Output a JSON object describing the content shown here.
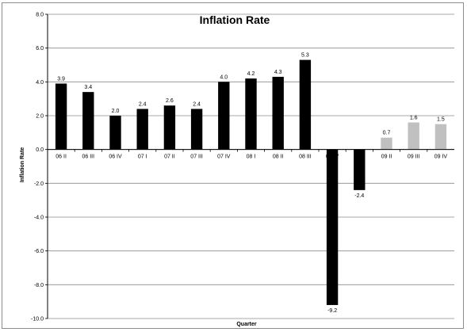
{
  "chart_data": {
    "type": "bar",
    "title": "Inflation Rate",
    "xlabel": "Quarter",
    "ylabel": "Inflation Rate",
    "ylim": [
      -10.0,
      8.0
    ],
    "yticks": [
      "8.0",
      "6.0",
      "4.0",
      "2.0",
      "0.0",
      "-2.0",
      "-4.0",
      "-6.0",
      "-8.0",
      "-10.0"
    ],
    "ytick_values": [
      8,
      6,
      4,
      2,
      0,
      -2,
      -4,
      -6,
      -8,
      -10
    ],
    "grid": true,
    "legend": "none",
    "categories": [
      "06 II",
      "06 III",
      "06 IV",
      "07 I",
      "07 II",
      "07 III",
      "07 IV",
      "08 I",
      "08 II",
      "08 III",
      "08 IV",
      "09 I",
      "09 II",
      "09 III",
      "09 IV"
    ],
    "values": [
      3.9,
      3.4,
      2.0,
      2.4,
      2.6,
      2.4,
      4.0,
      4.2,
      4.3,
      5.3,
      -9.2,
      -2.4,
      0.7,
      1.6,
      1.5
    ],
    "data_labels": [
      "3.9",
      "3.4",
      "2.0",
      "2.4",
      "2.6",
      "2.4",
      "4.0",
      "4.2",
      "4.3",
      "5.3",
      "-9.2",
      "-2.4",
      "0.7",
      "1.6",
      "1.5"
    ],
    "bar_colors": [
      "#000000",
      "#000000",
      "#000000",
      "#000000",
      "#000000",
      "#000000",
      "#000000",
      "#000000",
      "#000000",
      "#000000",
      "#000000",
      "#000000",
      "#c0c0c0",
      "#c0c0c0",
      "#c0c0c0"
    ]
  },
  "colors": {
    "grid": "#8c8c8c",
    "axis": "#000000",
    "actual_bar": "#000000",
    "forecast_bar": "#c0c0c0"
  }
}
